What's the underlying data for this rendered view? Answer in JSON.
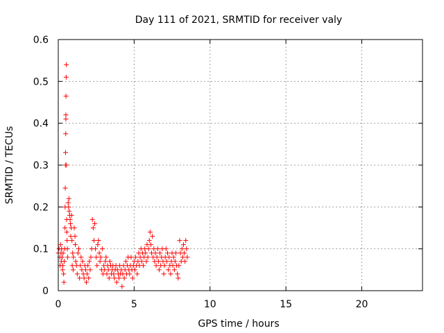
{
  "chart_data": {
    "type": "scatter",
    "title": "Day 111 of 2021, SRMTID for receiver valy",
    "xlabel": "GPS time / hours",
    "ylabel": "SRMTID / TECUs",
    "xlim": [
      0,
      24
    ],
    "ylim": [
      0,
      0.6
    ],
    "xticks": [
      0,
      5,
      10,
      15,
      20
    ],
    "xtick_labels": [
      "0",
      "5",
      "10",
      "15",
      "20"
    ],
    "yticks": [
      0,
      0.1,
      0.2,
      0.3,
      0.4,
      0.5,
      0.6
    ],
    "ytick_labels": [
      "0",
      "0.1",
      "0.2",
      "0.3",
      "0.4",
      "0.5",
      "0.6"
    ],
    "grid": true,
    "marker": "+",
    "series": [
      {
        "name": "SRMTID",
        "color": "#ff0000",
        "points": [
          [
            0.0,
            0.09
          ],
          [
            0.05,
            0.1
          ],
          [
            0.1,
            0.08
          ],
          [
            0.12,
            0.06
          ],
          [
            0.15,
            0.11
          ],
          [
            0.18,
            0.09
          ],
          [
            0.2,
            0.07
          ],
          [
            0.22,
            0.1
          ],
          [
            0.25,
            0.08
          ],
          [
            0.28,
            0.05
          ],
          [
            0.3,
            0.06
          ],
          [
            0.32,
            0.09
          ],
          [
            0.35,
            0.04
          ],
          [
            0.37,
            0.02
          ],
          [
            0.4,
            0.07
          ],
          [
            0.42,
            0.1
          ],
          [
            0.44,
            0.15
          ],
          [
            0.45,
            0.2
          ],
          [
            0.46,
            0.245
          ],
          [
            0.47,
            0.3
          ],
          [
            0.48,
            0.33
          ],
          [
            0.49,
            0.375
          ],
          [
            0.5,
            0.42
          ],
          [
            0.5,
            0.41
          ],
          [
            0.51,
            0.465
          ],
          [
            0.52,
            0.51
          ],
          [
            0.53,
            0.54
          ],
          [
            0.54,
            0.3
          ],
          [
            0.55,
            0.17
          ],
          [
            0.56,
            0.14
          ],
          [
            0.58,
            0.12
          ],
          [
            0.6,
            0.1
          ],
          [
            0.62,
            0.08
          ],
          [
            0.65,
            0.21
          ],
          [
            0.68,
            0.2
          ],
          [
            0.7,
            0.22
          ],
          [
            0.72,
            0.19
          ],
          [
            0.75,
            0.18
          ],
          [
            0.78,
            0.17
          ],
          [
            0.8,
            0.16
          ],
          [
            0.82,
            0.13
          ],
          [
            0.85,
            0.15
          ],
          [
            0.88,
            0.18
          ],
          [
            0.9,
            0.12
          ],
          [
            0.92,
            0.06
          ],
          [
            0.95,
            0.09
          ],
          [
            0.98,
            0.05
          ],
          [
            1.0,
            0.08
          ],
          [
            1.05,
            0.15
          ],
          [
            1.1,
            0.13
          ],
          [
            1.12,
            0.11
          ],
          [
            1.15,
            0.07
          ],
          [
            1.2,
            0.06
          ],
          [
            1.25,
            0.04
          ],
          [
            1.3,
            0.09
          ],
          [
            1.35,
            0.1
          ],
          [
            1.4,
            0.03
          ],
          [
            1.45,
            0.06
          ],
          [
            1.5,
            0.08
          ],
          [
            1.55,
            0.05
          ],
          [
            1.6,
            0.07
          ],
          [
            1.65,
            0.04
          ],
          [
            1.7,
            0.03
          ],
          [
            1.75,
            0.06
          ],
          [
            1.8,
            0.05
          ],
          [
            1.85,
            0.02
          ],
          [
            1.9,
            0.04
          ],
          [
            1.95,
            0.06
          ],
          [
            2.0,
            0.03
          ],
          [
            2.05,
            0.07
          ],
          [
            2.1,
            0.05
          ],
          [
            2.15,
            0.08
          ],
          [
            2.2,
            0.1
          ],
          [
            2.25,
            0.17
          ],
          [
            2.3,
            0.15
          ],
          [
            2.35,
            0.12
          ],
          [
            2.4,
            0.16
          ],
          [
            2.45,
            0.1
          ],
          [
            2.5,
            0.08
          ],
          [
            2.55,
            0.06
          ],
          [
            2.6,
            0.11
          ],
          [
            2.65,
            0.12
          ],
          [
            2.7,
            0.09
          ],
          [
            2.75,
            0.07
          ],
          [
            2.8,
            0.08
          ],
          [
            2.85,
            0.05
          ],
          [
            2.9,
            0.1
          ],
          [
            2.95,
            0.04
          ],
          [
            3.0,
            0.06
          ],
          [
            3.05,
            0.05
          ],
          [
            3.1,
            0.07
          ],
          [
            3.15,
            0.08
          ],
          [
            3.2,
            0.04
          ],
          [
            3.25,
            0.06
          ],
          [
            3.3,
            0.05
          ],
          [
            3.35,
            0.03
          ],
          [
            3.4,
            0.07
          ],
          [
            3.45,
            0.06
          ],
          [
            3.5,
            0.04
          ],
          [
            3.55,
            0.05
          ],
          [
            3.6,
            0.06
          ],
          [
            3.65,
            0.04
          ],
          [
            3.7,
            0.03
          ],
          [
            3.75,
            0.05
          ],
          [
            3.8,
            0.06
          ],
          [
            3.85,
            0.02
          ],
          [
            3.9,
            0.05
          ],
          [
            3.95,
            0.04
          ],
          [
            4.0,
            0.03
          ],
          [
            4.05,
            0.06
          ],
          [
            4.1,
            0.04
          ],
          [
            4.15,
            0.05
          ],
          [
            4.2,
            0.01
          ],
          [
            4.25,
            0.04
          ],
          [
            4.3,
            0.06
          ],
          [
            4.35,
            0.03
          ],
          [
            4.4,
            0.05
          ],
          [
            4.45,
            0.07
          ],
          [
            4.5,
            0.04
          ],
          [
            4.55,
            0.06
          ],
          [
            4.6,
            0.08
          ],
          [
            4.65,
            0.05
          ],
          [
            4.7,
            0.04
          ],
          [
            4.75,
            0.06
          ],
          [
            4.8,
            0.08
          ],
          [
            4.85,
            0.05
          ],
          [
            4.9,
            0.03
          ],
          [
            4.95,
            0.06
          ],
          [
            5.0,
            0.07
          ],
          [
            5.05,
            0.05
          ],
          [
            5.1,
            0.08
          ],
          [
            5.15,
            0.06
          ],
          [
            5.2,
            0.04
          ],
          [
            5.25,
            0.07
          ],
          [
            5.3,
            0.09
          ],
          [
            5.35,
            0.06
          ],
          [
            5.4,
            0.08
          ],
          [
            5.45,
            0.1
          ],
          [
            5.5,
            0.07
          ],
          [
            5.55,
            0.09
          ],
          [
            5.6,
            0.06
          ],
          [
            5.65,
            0.08
          ],
          [
            5.7,
            0.1
          ],
          [
            5.75,
            0.09
          ],
          [
            5.8,
            0.07
          ],
          [
            5.85,
            0.11
          ],
          [
            5.9,
            0.08
          ],
          [
            5.95,
            0.1
          ],
          [
            6.0,
            0.12
          ],
          [
            6.05,
            0.14
          ],
          [
            6.1,
            0.11
          ],
          [
            6.15,
            0.09
          ],
          [
            6.2,
            0.13
          ],
          [
            6.25,
            0.08
          ],
          [
            6.3,
            0.1
          ],
          [
            6.35,
            0.07
          ],
          [
            6.4,
            0.09
          ],
          [
            6.45,
            0.06
          ],
          [
            6.5,
            0.08
          ],
          [
            6.55,
            0.1
          ],
          [
            6.6,
            0.07
          ],
          [
            6.65,
            0.05
          ],
          [
            6.7,
            0.09
          ],
          [
            6.75,
            0.06
          ],
          [
            6.8,
            0.08
          ],
          [
            6.85,
            0.1
          ],
          [
            6.9,
            0.07
          ],
          [
            6.95,
            0.04
          ],
          [
            7.0,
            0.06
          ],
          [
            7.05,
            0.08
          ],
          [
            7.1,
            0.1
          ],
          [
            7.15,
            0.07
          ],
          [
            7.2,
            0.09
          ],
          [
            7.25,
            0.05
          ],
          [
            7.3,
            0.08
          ],
          [
            7.35,
            0.06
          ],
          [
            7.4,
            0.04
          ],
          [
            7.45,
            0.07
          ],
          [
            7.5,
            0.09
          ],
          [
            7.55,
            0.06
          ],
          [
            7.6,
            0.08
          ],
          [
            7.65,
            0.05
          ],
          [
            7.7,
            0.07
          ],
          [
            7.75,
            0.09
          ],
          [
            7.8,
            0.06
          ],
          [
            7.85,
            0.04
          ],
          [
            7.9,
            0.03
          ],
          [
            7.95,
            0.06
          ],
          [
            8.0,
            0.12
          ],
          [
            8.05,
            0.09
          ],
          [
            8.1,
            0.07
          ],
          [
            8.15,
            0.1
          ],
          [
            8.2,
            0.08
          ],
          [
            8.25,
            0.11
          ],
          [
            8.3,
            0.09
          ],
          [
            8.35,
            0.07
          ],
          [
            8.4,
            0.12
          ],
          [
            8.45,
            0.1
          ],
          [
            8.5,
            0.08
          ]
        ]
      }
    ]
  }
}
